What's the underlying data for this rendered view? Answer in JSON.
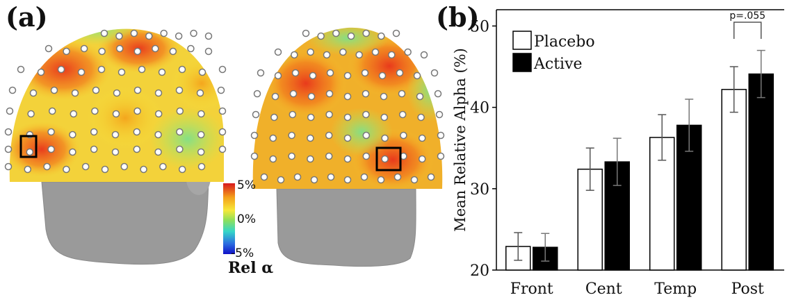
{
  "panels": {
    "a": "(a)",
    "b": "(b)"
  },
  "colorbar": {
    "max_label": "5%",
    "mid_label": "0%",
    "min_label": "-5%",
    "title": "Rel α",
    "colors": [
      "#d7191c",
      "#f4a11a",
      "#f7e83a",
      "#8fe05a",
      "#35d6c8",
      "#2b6fe0",
      "#1010c8"
    ]
  },
  "chart_data": {
    "type": "bar",
    "categories": [
      "Front",
      "Cent",
      "Temp",
      "Post"
    ],
    "series": [
      {
        "name": "Placebo",
        "values": [
          22.9,
          32.4,
          36.3,
          42.2
        ],
        "errors": [
          1.7,
          2.6,
          2.8,
          2.8
        ],
        "color": "#ffffff"
      },
      {
        "name": "Active",
        "values": [
          22.8,
          33.3,
          37.8,
          44.1
        ],
        "errors": [
          1.7,
          2.9,
          3.2,
          2.9
        ],
        "color": "#000000"
      }
    ],
    "ylabel": "Mean Relative Alpha (%)",
    "xlabel": "",
    "ylim": [
      20,
      52
    ],
    "yticks": [
      20,
      30,
      40,
      50
    ],
    "legend_position": "top-left",
    "annotation": {
      "text": "p=.055",
      "category": "Post"
    }
  }
}
